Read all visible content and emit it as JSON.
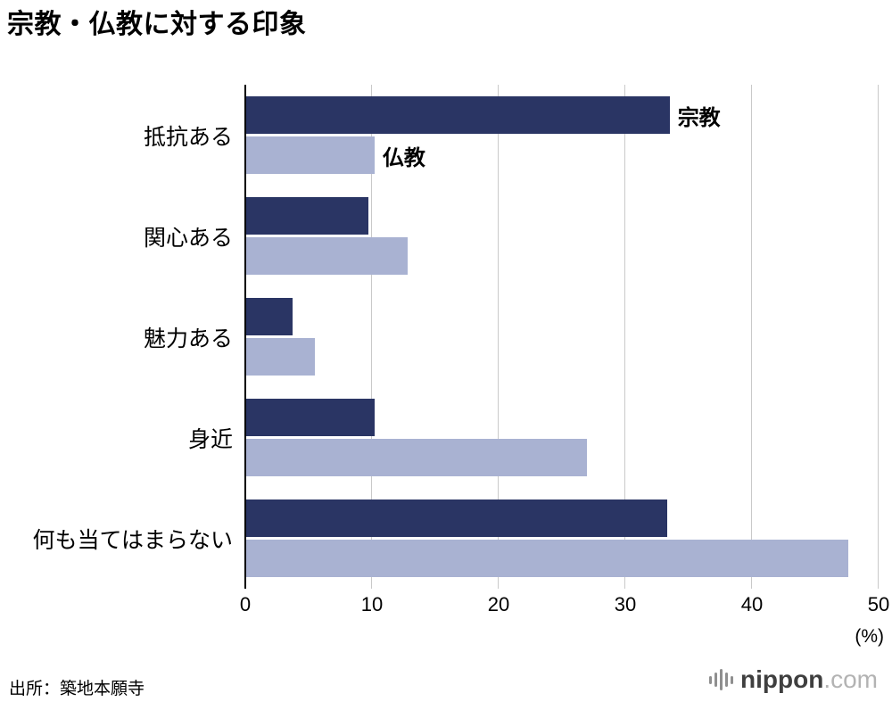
{
  "title": "宗教・仏教に対する印象",
  "source": "出所：築地本願寺",
  "logo": {
    "name": "nippon",
    "suffix": ".com",
    "icon": "soundwave-icon"
  },
  "chart_data": {
    "type": "bar",
    "orientation": "horizontal",
    "title": "宗教・仏教に対する印象",
    "categories": [
      "抵抗ある",
      "関心ある",
      "魅力ある",
      "身近",
      "何も当てはまらない"
    ],
    "series": [
      {
        "name": "宗教",
        "color": "#2a3564",
        "values": [
          33.5,
          9.7,
          3.7,
          10.2,
          33.3
        ]
      },
      {
        "name": "仏教",
        "color": "#a9b2d2",
        "values": [
          10.2,
          12.8,
          5.5,
          27.0,
          47.6
        ]
      }
    ],
    "xlim": [
      0,
      50
    ],
    "xticks": [
      0,
      10,
      20,
      30,
      40,
      50
    ],
    "x_unit": "(%)",
    "xlabel": "",
    "ylabel": "",
    "grid": true,
    "legend_position": "inline-first-group",
    "annotations": [
      "宗教",
      "仏教"
    ]
  }
}
